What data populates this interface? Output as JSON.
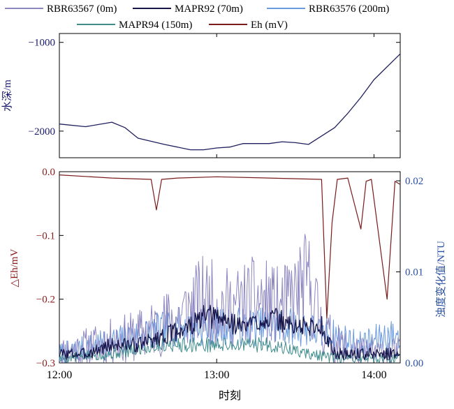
{
  "chart_data": [
    {
      "type": "line",
      "ylabel": "水深/m",
      "xlim": [
        "12:00",
        "14:10"
      ],
      "ylim": [
        -2300,
        -900
      ],
      "yticks": [
        -1000,
        -2000
      ],
      "ytick_labels": [
        "−1000",
        "−2000"
      ],
      "grid": false,
      "series": [
        {
          "name": "MAPR92 (70m)",
          "color": "#1f1f5f",
          "x": [
            "12:00",
            "12:10",
            "12:20",
            "12:25",
            "12:30",
            "12:40",
            "12:50",
            "12:55",
            "13:00",
            "13:05",
            "13:10",
            "13:20",
            "13:25",
            "13:30",
            "13:35",
            "13:45",
            "13:50",
            "13:55",
            "14:00",
            "14:10"
          ],
          "values": [
            -1920,
            -1950,
            -1900,
            -1960,
            -2080,
            -2150,
            -2210,
            -2210,
            -2190,
            -2180,
            -2140,
            -2140,
            -2120,
            -2130,
            -2150,
            -1960,
            -1800,
            -1620,
            -1420,
            -1130
          ]
        }
      ]
    },
    {
      "type": "line",
      "ylabel": "△Eh/mV",
      "y2label": "浊度变化值/NTU",
      "xlabel": "时刻",
      "x_ticks": [
        "12:00",
        "13:00",
        "14:00"
      ],
      "ylim": [
        -0.3,
        0.0
      ],
      "yticks": [
        0.0,
        -0.1,
        -0.2,
        -0.3
      ],
      "ytick_labels": [
        "0.0",
        "−0.1",
        "−0.2",
        "−0.3"
      ],
      "y2lim": [
        0.0,
        0.021
      ],
      "y2ticks": [
        0.0,
        0.01,
        0.02
      ],
      "y2tick_labels": [
        "0.00",
        "0.01",
        "0.02"
      ],
      "grid": false,
      "series": [
        {
          "name": "Eh (mV)",
          "color": "#7a1a1a",
          "axis": "left",
          "x": [
            "12:00",
            "12:20",
            "12:35",
            "12:37",
            "12:39",
            "12:45",
            "13:00",
            "13:20",
            "13:40",
            "13:42",
            "13:44",
            "13:46",
            "13:50",
            "13:55",
            "13:57",
            "13:59",
            "14:05",
            "14:08",
            "14:10"
          ],
          "values": [
            -0.005,
            -0.01,
            -0.012,
            -0.06,
            -0.012,
            -0.01,
            -0.008,
            -0.01,
            -0.012,
            -0.23,
            -0.08,
            -0.012,
            -0.01,
            -0.09,
            -0.015,
            -0.012,
            -0.2,
            -0.015,
            -0.02
          ]
        },
        {
          "name": "RBR63567 (0m)",
          "color": "#8c86c0",
          "axis": "right",
          "x": [
            "12:00",
            "12:15",
            "12:30",
            "12:45",
            "12:55",
            "13:05",
            "13:15",
            "13:25",
            "13:35",
            "13:40",
            "13:45",
            "13:55",
            "14:05",
            "14:10"
          ],
          "values": [
            0.001,
            0.002,
            0.003,
            0.005,
            0.007,
            0.006,
            0.007,
            0.006,
            0.009,
            0.004,
            0.002,
            0.001,
            0.001,
            0.001
          ]
        },
        {
          "name": "MAPR92 (70m)",
          "color": "#15154a",
          "axis": "right",
          "x": [
            "12:00",
            "12:10",
            "12:20",
            "12:30",
            "12:40",
            "12:50",
            "12:55",
            "13:00",
            "13:10",
            "13:20",
            "13:30",
            "13:40",
            "13:45",
            "13:50",
            "14:00",
            "14:10"
          ],
          "values": [
            0.001,
            0.001,
            0.002,
            0.002,
            0.003,
            0.004,
            0.005,
            0.005,
            0.004,
            0.005,
            0.004,
            0.004,
            0.001,
            0.001,
            0.001,
            0.001
          ]
        },
        {
          "name": "RBR63576 (200m)",
          "color": "#6a9ae0",
          "axis": "right",
          "x": [
            "12:00",
            "12:15",
            "12:30",
            "12:45",
            "13:00",
            "13:15",
            "13:30",
            "13:45",
            "13:55",
            "14:05",
            "14:10"
          ],
          "values": [
            0.001,
            0.002,
            0.003,
            0.004,
            0.004,
            0.004,
            0.004,
            0.003,
            0.002,
            0.003,
            0.003
          ]
        },
        {
          "name": "MAPR94 (150m)",
          "color": "#3f8c8c",
          "axis": "right",
          "x": [
            "12:00",
            "12:20",
            "12:40",
            "12:55",
            "13:05",
            "13:20",
            "13:35",
            "13:45",
            "14:10"
          ],
          "values": [
            0.0005,
            0.001,
            0.002,
            0.002,
            0.002,
            0.002,
            0.001,
            0.0005,
            0.0005
          ]
        }
      ]
    }
  ]
}
